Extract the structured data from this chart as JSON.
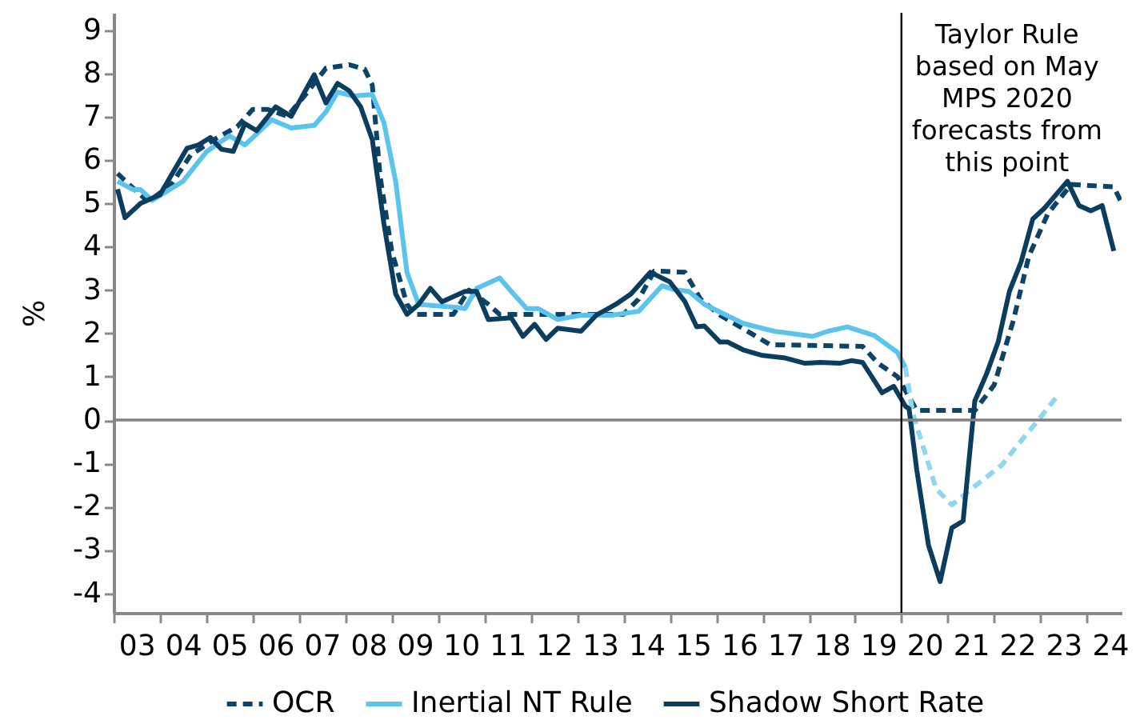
{
  "chart_data": {
    "type": "line",
    "ylabel": "%",
    "xlim": [
      "2003-01",
      "2024-10"
    ],
    "ylim": [
      -4.45,
      9.4
    ],
    "yticks": [
      -4,
      -3,
      -2,
      -1,
      0,
      1,
      2,
      3,
      4,
      5,
      6,
      7,
      8,
      9
    ],
    "xticks": [
      {
        "value": "2003-01",
        "label": null
      },
      {
        "value": "2003-07",
        "label": "03"
      },
      {
        "value": "2004-01",
        "label": null
      },
      {
        "value": "2004-07",
        "label": "04"
      },
      {
        "value": "2005-01",
        "label": null
      },
      {
        "value": "2005-07",
        "label": "05"
      },
      {
        "value": "2006-01",
        "label": null
      },
      {
        "value": "2006-07",
        "label": "06"
      },
      {
        "value": "2007-01",
        "label": null
      },
      {
        "value": "2007-07",
        "label": "07"
      },
      {
        "value": "2008-01",
        "label": null
      },
      {
        "value": "2008-07",
        "label": "08"
      },
      {
        "value": "2009-01",
        "label": null
      },
      {
        "value": "2009-07",
        "label": "09"
      },
      {
        "value": "2010-01",
        "label": null
      },
      {
        "value": "2010-07",
        "label": "10"
      },
      {
        "value": "2011-01",
        "label": null
      },
      {
        "value": "2011-07",
        "label": "11"
      },
      {
        "value": "2012-01",
        "label": null
      },
      {
        "value": "2012-07",
        "label": "12"
      },
      {
        "value": "2013-01",
        "label": null
      },
      {
        "value": "2013-07",
        "label": "13"
      },
      {
        "value": "2014-01",
        "label": null
      },
      {
        "value": "2014-07",
        "label": "14"
      },
      {
        "value": "2015-01",
        "label": null
      },
      {
        "value": "2015-07",
        "label": "15"
      },
      {
        "value": "2016-01",
        "label": null
      },
      {
        "value": "2016-07",
        "label": "16"
      },
      {
        "value": "2017-01",
        "label": null
      },
      {
        "value": "2017-07",
        "label": "17"
      },
      {
        "value": "2018-01",
        "label": null
      },
      {
        "value": "2018-07",
        "label": "18"
      },
      {
        "value": "2019-01",
        "label": null
      },
      {
        "value": "2019-07",
        "label": "19"
      },
      {
        "value": "2020-01",
        "label": null
      },
      {
        "value": "2020-07",
        "label": "20"
      },
      {
        "value": "2021-01",
        "label": null
      },
      {
        "value": "2021-07",
        "label": "21"
      },
      {
        "value": "2022-01",
        "label": null
      },
      {
        "value": "2022-07",
        "label": "22"
      },
      {
        "value": "2023-01",
        "label": null
      },
      {
        "value": "2023-07",
        "label": "23"
      },
      {
        "value": "2024-01",
        "label": null
      },
      {
        "value": "2024-07",
        "label": "24"
      }
    ],
    "grid": false,
    "legend": "bottom",
    "ref_lines": [
      {
        "axis": "y",
        "value": 0,
        "color": "#808080"
      },
      {
        "axis": "x",
        "value": "2020-01",
        "label": "Taylor Rule based on May MPS 2020 forecasts from this point",
        "color": "#000000"
      }
    ],
    "series": [
      {
        "name": "OCR",
        "color": "#0b4468",
        "line_style": "dashed",
        "x": [
          "2003-02",
          "2003-06",
          "2003-10",
          "2004-04",
          "2004-09",
          "2005-03",
          "2005-09",
          "2006-01",
          "2006-05",
          "2006-10",
          "2007-03",
          "2007-08",
          "2008-02",
          "2008-06",
          "2008-08",
          "2008-10",
          "2009-01",
          "2009-05",
          "2009-07",
          "2010-05",
          "2010-09",
          "2011-02",
          "2011-05",
          "2014-01",
          "2014-05",
          "2014-09",
          "2015-05",
          "2015-09",
          "2016-02",
          "2016-08",
          "2017-03",
          "2019-03",
          "2019-07",
          "2019-12",
          "2020-05",
          "2021-08",
          "2022-01",
          "2022-06",
          "2022-10",
          "2023-03",
          "2023-09",
          "2024-08",
          "2024-10"
        ],
        "values": [
          5.69,
          5.36,
          5.04,
          5.44,
          6.12,
          6.47,
          6.77,
          7.17,
          7.17,
          7.01,
          7.54,
          8.12,
          8.2,
          8.1,
          7.73,
          5.63,
          3.9,
          2.67,
          2.44,
          2.44,
          3.0,
          2.67,
          2.44,
          2.44,
          2.79,
          3.44,
          3.41,
          2.79,
          2.42,
          2.11,
          1.74,
          1.7,
          1.31,
          1.0,
          0.22,
          0.22,
          0.81,
          2.3,
          3.78,
          4.77,
          5.44,
          5.38,
          5.01
        ]
      },
      {
        "name": "Inertial NT Rule",
        "color": "#5bc4ec",
        "line_style": "solid",
        "x": [
          "2003-02",
          "2003-06",
          "2003-08",
          "2003-11",
          "2004-07",
          "2005-01",
          "2005-07",
          "2005-11",
          "2006-06",
          "2006-11",
          "2007-05",
          "2007-08",
          "2007-11",
          "2008-03",
          "2008-08",
          "2008-11",
          "2009-02",
          "2009-05",
          "2009-08",
          "2010-06",
          "2010-08",
          "2010-11",
          "2011-05",
          "2011-08",
          "2011-12",
          "2012-03",
          "2012-08",
          "2013-02",
          "2013-10",
          "2014-05",
          "2014-11",
          "2015-02",
          "2015-06",
          "2015-10",
          "2016-08",
          "2017-04",
          "2018-02",
          "2018-06",
          "2018-11",
          "2019-06",
          "2019-12",
          "2020-02"
        ],
        "values": [
          5.51,
          5.32,
          5.32,
          5.07,
          5.51,
          6.19,
          6.56,
          6.35,
          6.93,
          6.74,
          6.8,
          7.11,
          7.57,
          7.48,
          7.51,
          6.86,
          5.51,
          3.41,
          2.67,
          2.6,
          2.57,
          3.04,
          3.28,
          2.97,
          2.57,
          2.57,
          2.32,
          2.42,
          2.42,
          2.51,
          3.1,
          3.01,
          2.97,
          2.67,
          2.23,
          2.05,
          1.93,
          2.05,
          2.15,
          1.95,
          1.56,
          1.21
        ]
      },
      {
        "color": "#8fd6f2",
        "line_style": "dashed",
        "x": [
          "2020-02",
          "2020-04",
          "2020-10",
          "2021-02",
          "2021-08",
          "2022-03",
          "2022-08",
          "2022-12",
          "2023-05"
        ],
        "values": [
          1.21,
          0.14,
          -1.59,
          -1.96,
          -1.53,
          -1.04,
          -0.48,
          -0.05,
          0.51
        ]
      },
      {
        "name": "Shadow Short Rate",
        "color": "#0b3d5e",
        "line_style": "solid",
        "x": [
          "2003-02",
          "2003-04",
          "2003-08",
          "2004-01",
          "2004-08",
          "2004-11",
          "2005-02",
          "2005-05",
          "2005-08",
          "2005-11",
          "2006-02",
          "2006-07",
          "2006-11",
          "2007-05",
          "2007-08",
          "2007-11",
          "2008-02",
          "2008-05",
          "2008-08",
          "2008-11",
          "2009-02",
          "2009-05",
          "2009-08",
          "2009-11",
          "2010-02",
          "2010-08",
          "2010-11",
          "2011-02",
          "2011-08",
          "2011-11",
          "2012-02",
          "2012-05",
          "2012-08",
          "2013-02",
          "2013-06",
          "2013-11",
          "2014-03",
          "2014-08",
          "2015-01",
          "2015-05",
          "2015-08",
          "2015-10",
          "2016-02",
          "2016-04",
          "2016-08",
          "2017-01",
          "2017-07",
          "2017-12",
          "2018-04",
          "2018-09",
          "2018-12",
          "2019-03",
          "2019-08",
          "2019-11",
          "2020-02",
          "2020-03",
          "2020-05",
          "2020-08",
          "2020-11",
          "2021-02",
          "2021-05",
          "2021-08",
          "2021-11",
          "2022-02",
          "2022-05",
          "2022-08",
          "2022-11",
          "2023-02",
          "2023-08",
          "2023-11",
          "2024-02",
          "2024-05",
          "2024-08"
        ],
        "values": [
          5.33,
          4.67,
          5.0,
          5.2,
          6.27,
          6.35,
          6.52,
          6.25,
          6.2,
          6.84,
          6.68,
          7.23,
          7.01,
          7.97,
          7.32,
          7.77,
          7.6,
          7.23,
          6.47,
          4.52,
          2.91,
          2.44,
          2.67,
          3.04,
          2.73,
          2.97,
          2.97,
          2.32,
          2.36,
          1.93,
          2.21,
          1.86,
          2.12,
          2.05,
          2.42,
          2.67,
          2.91,
          3.41,
          3.19,
          2.73,
          2.15,
          2.17,
          1.8,
          1.8,
          1.62,
          1.49,
          1.43,
          1.31,
          1.33,
          1.31,
          1.37,
          1.33,
          0.63,
          0.78,
          0.32,
          0.26,
          -1.16,
          -2.89,
          -3.73,
          -2.49,
          -2.33,
          0.44,
          1.06,
          1.8,
          2.97,
          3.65,
          4.64,
          4.89,
          5.51,
          4.95,
          4.83,
          4.95,
          3.9
        ]
      }
    ]
  }
}
